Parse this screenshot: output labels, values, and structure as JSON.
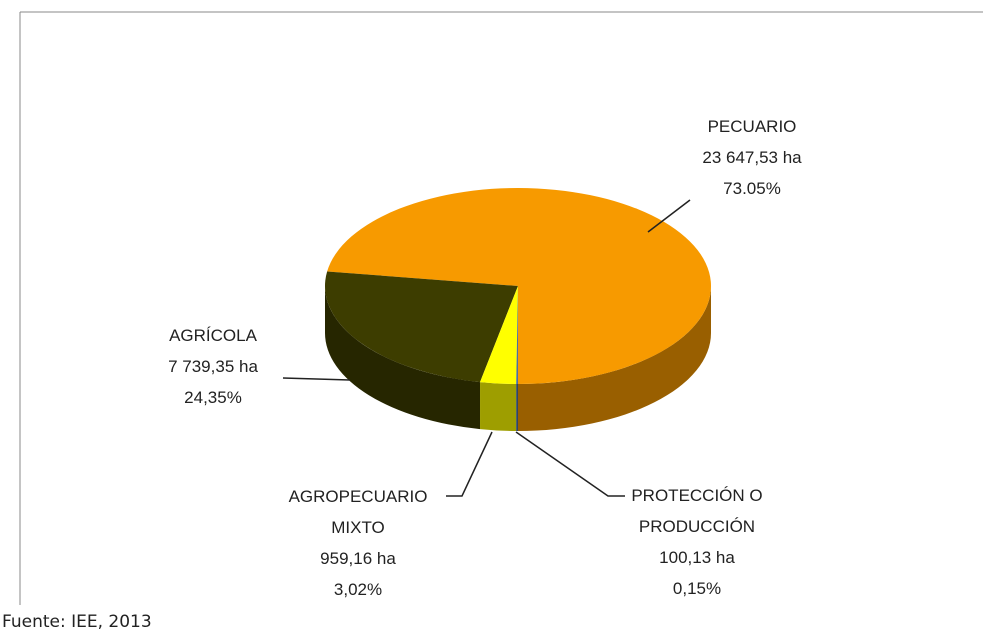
{
  "chart_data": {
    "type": "pie",
    "categories": [
      "PECUARIO",
      "AGRÍCOLA",
      "AGROPECUARIO MIXTO",
      "PROTECCIÓN O PRODUCCIÓN"
    ],
    "area_labels": [
      "23 647,53 ha",
      "7 739,35 ha",
      "959,16 ha",
      "100,13 ha"
    ],
    "values": [
      73.05,
      24.35,
      3.02,
      0.15
    ],
    "value_labels": [
      "73.05%",
      "24,35%",
      "3,02%",
      "0,15%"
    ],
    "colors": [
      "#f79a00",
      "#3d3d00",
      "#ffff00",
      "#4a6fa5"
    ],
    "source": "Fuente: IEE, 2013"
  }
}
